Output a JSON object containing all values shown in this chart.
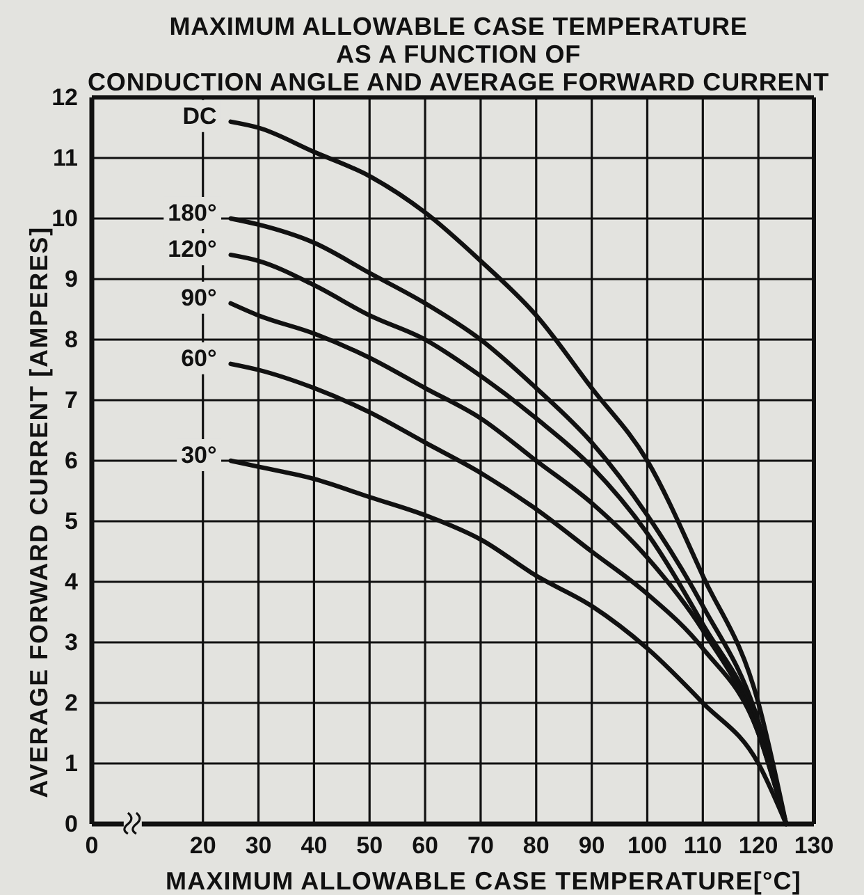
{
  "chart_data": {
    "type": "line",
    "title": "MAXIMUM ALLOWABLE CASE TEMPERATURE\nAS A FUNCTION OF\nCONDUCTION ANGLE AND AVERAGE FORWARD CURRENT",
    "xlabel": "MAXIMUM ALLOWABLE CASE TEMPERATURE[°C]",
    "ylabel": "AVERAGE FORWARD CURRENT [AMPERES]",
    "x": [
      25,
      30,
      40,
      50,
      60,
      70,
      80,
      90,
      100,
      110,
      120,
      125
    ],
    "series": [
      {
        "name": "DC",
        "color": "#111111",
        "values": [
          11.6,
          11.5,
          11.1,
          10.7,
          10.1,
          9.3,
          8.4,
          7.2,
          6.0,
          4.1,
          2.0,
          0
        ]
      },
      {
        "name": "180°",
        "color": "#111111",
        "values": [
          10.0,
          9.9,
          9.6,
          9.1,
          8.6,
          8.0,
          7.2,
          6.3,
          5.1,
          3.6,
          1.7,
          0
        ]
      },
      {
        "name": "120°",
        "color": "#111111",
        "values": [
          9.4,
          9.3,
          8.9,
          8.4,
          8.0,
          7.4,
          6.7,
          5.9,
          4.8,
          3.3,
          1.6,
          0
        ]
      },
      {
        "name": "90°",
        "color": "#111111",
        "values": [
          8.6,
          8.4,
          8.1,
          7.7,
          7.2,
          6.7,
          6.0,
          5.3,
          4.4,
          3.2,
          1.5,
          0
        ]
      },
      {
        "name": "60°",
        "color": "#111111",
        "values": [
          7.6,
          7.5,
          7.2,
          6.8,
          6.3,
          5.8,
          5.2,
          4.5,
          3.8,
          2.9,
          1.5,
          0
        ]
      },
      {
        "name": "30°",
        "color": "#111111",
        "values": [
          6.0,
          5.9,
          5.7,
          5.4,
          5.1,
          4.7,
          4.1,
          3.6,
          2.9,
          2.0,
          1.0,
          0
        ]
      }
    ],
    "xlim": [
      0,
      130
    ],
    "xticks": [
      0,
      20,
      30,
      40,
      50,
      60,
      70,
      80,
      90,
      100,
      110,
      120,
      130
    ],
    "ylim": [
      0,
      12
    ],
    "yticks": [
      0,
      1,
      2,
      3,
      4,
      5,
      6,
      7,
      8,
      9,
      10,
      11,
      12
    ],
    "grid": true,
    "marker": "none"
  }
}
